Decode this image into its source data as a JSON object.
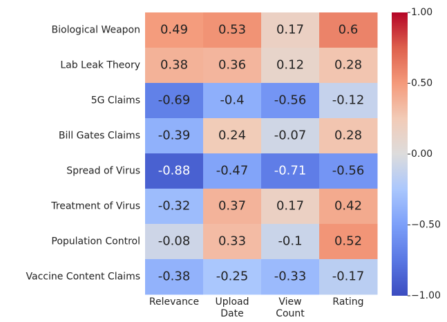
{
  "chart_data": {
    "type": "heatmap",
    "colormap": "coolwarm",
    "categories": [
      "Relevance",
      "Upload\nDate",
      "View\nCount",
      "Rating"
    ],
    "rows": [
      "Biological Weapon",
      "Lab Leak Theory",
      "5G Claims",
      "Bill Gates Claims",
      "Spread of Virus",
      "Treatment of Virus",
      "Population Control",
      "Vaccine Content Claims"
    ],
    "values": [
      [
        0.49,
        0.53,
        0.17,
        0.6
      ],
      [
        0.38,
        0.36,
        0.12,
        0.28
      ],
      [
        -0.69,
        -0.4,
        -0.56,
        -0.12
      ],
      [
        -0.39,
        0.24,
        -0.07,
        0.28
      ],
      [
        -0.88,
        -0.47,
        -0.71,
        -0.56
      ],
      [
        -0.32,
        0.37,
        0.17,
        0.42
      ],
      [
        -0.08,
        0.33,
        -0.1,
        0.52
      ],
      [
        -0.38,
        -0.25,
        -0.33,
        -0.17
      ]
    ],
    "clim": [
      -1,
      1
    ],
    "cticks": [
      {
        "value": 1,
        "label": "1.00"
      },
      {
        "value": 0.5,
        "label": "0.50"
      },
      {
        "value": 0,
        "label": "0.00"
      },
      {
        "value": -0.5,
        "label": "−0.50"
      },
      {
        "value": -1,
        "label": "−1.00"
      }
    ]
  }
}
